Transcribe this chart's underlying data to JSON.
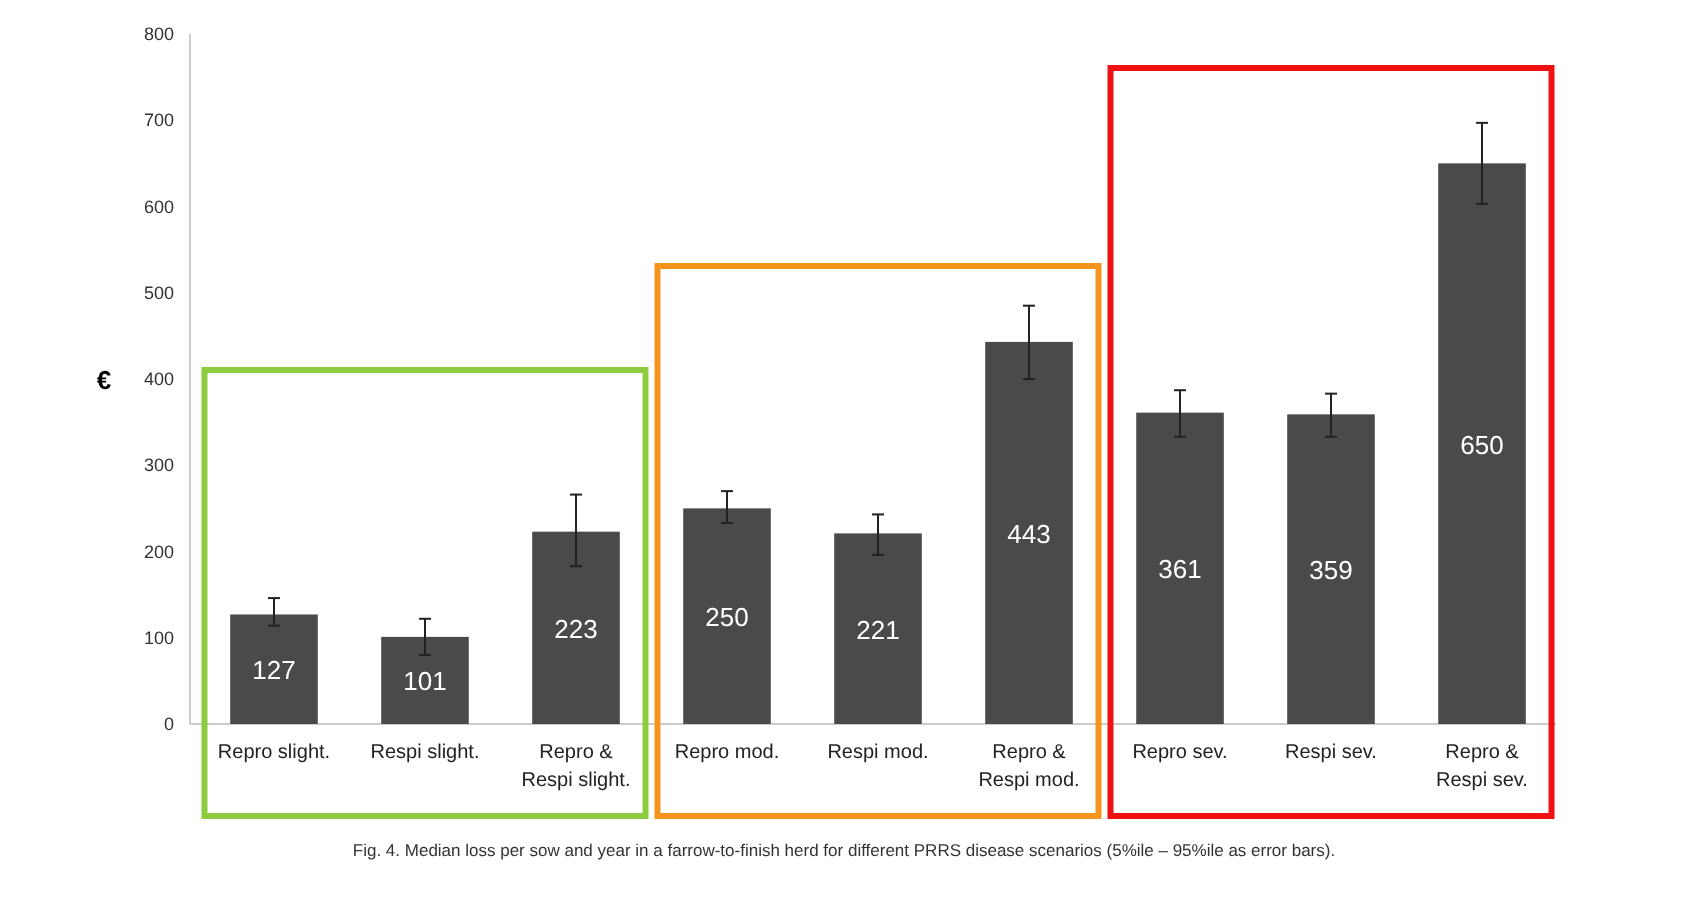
{
  "chart_data": {
    "type": "bar",
    "ylabel": "€",
    "categories": [
      "Repro slight.",
      "Respi slight.",
      "Repro & Respi slight.",
      "Repro mod.",
      "Respi mod.",
      "Repro & Respi mod.",
      "Repro sev.",
      "Respi sev.",
      "Repro & Respi sev."
    ],
    "values": [
      127,
      101,
      223,
      250,
      221,
      443,
      361,
      359,
      650
    ],
    "errors": [
      [
        114,
        146
      ],
      [
        80,
        122
      ],
      [
        183,
        266
      ],
      [
        233,
        270
      ],
      [
        196,
        243
      ],
      [
        400,
        485
      ],
      [
        333,
        387
      ],
      [
        333,
        383
      ],
      [
        603,
        697
      ]
    ],
    "color": "#4a4a4a",
    "data_labels": true,
    "ylim": [
      0,
      800
    ],
    "yticks": [
      0,
      100,
      200,
      300,
      400,
      500,
      600,
      700,
      800
    ],
    "grid": false,
    "annotations": [
      "Fig. 4. Median loss per sow and year in a farrow-to-finish herd for different PRRS disease scenarios (5%ile – 95%ile as error bars)."
    ]
  }
}
